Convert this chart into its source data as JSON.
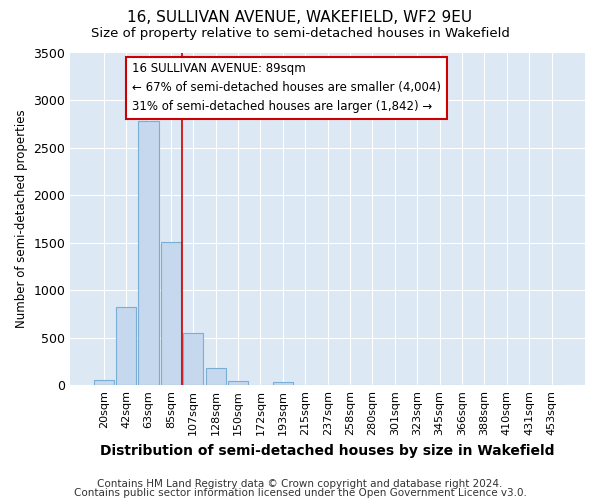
{
  "title1": "16, SULLIVAN AVENUE, WAKEFIELD, WF2 9EU",
  "title2": "Size of property relative to semi-detached houses in Wakefield",
  "xlabel": "Distribution of semi-detached houses by size in Wakefield",
  "ylabel": "Number of semi-detached properties",
  "footer1": "Contains HM Land Registry data © Crown copyright and database right 2024.",
  "footer2": "Contains public sector information licensed under the Open Government Licence v3.0.",
  "categories": [
    "20sqm",
    "42sqm",
    "63sqm",
    "85sqm",
    "107sqm",
    "128sqm",
    "150sqm",
    "172sqm",
    "193sqm",
    "215sqm",
    "237sqm",
    "258sqm",
    "280sqm",
    "301sqm",
    "323sqm",
    "345sqm",
    "366sqm",
    "388sqm",
    "410sqm",
    "431sqm",
    "453sqm"
  ],
  "values": [
    60,
    820,
    2780,
    1510,
    550,
    185,
    50,
    0,
    35,
    0,
    0,
    0,
    0,
    0,
    0,
    0,
    0,
    0,
    0,
    0,
    0
  ],
  "bar_color": "#c5d8ee",
  "bar_edge_color": "#7aaed4",
  "ylim": [
    0,
    3500
  ],
  "yticks": [
    0,
    500,
    1000,
    1500,
    2000,
    2500,
    3000,
    3500
  ],
  "vline_x_index": 3.5,
  "vline_color": "#cc0000",
  "annotation_text_line1": "16 SULLIVAN AVENUE: 89sqm",
  "annotation_text_line2": "← 67% of semi-detached houses are smaller (4,004)",
  "annotation_text_line3": "31% of semi-detached houses are larger (1,842) →",
  "annotation_box_color": "#cc0000",
  "fig_bg_color": "#ffffff",
  "plot_bg_color": "#dce9f5",
  "grid_color": "#ffffff",
  "title1_fontsize": 11,
  "title2_fontsize": 9.5,
  "xlabel_fontsize": 10,
  "ylabel_fontsize": 8.5,
  "tick_fontsize": 8,
  "annotation_fontsize": 8.5,
  "footer_fontsize": 7.5
}
